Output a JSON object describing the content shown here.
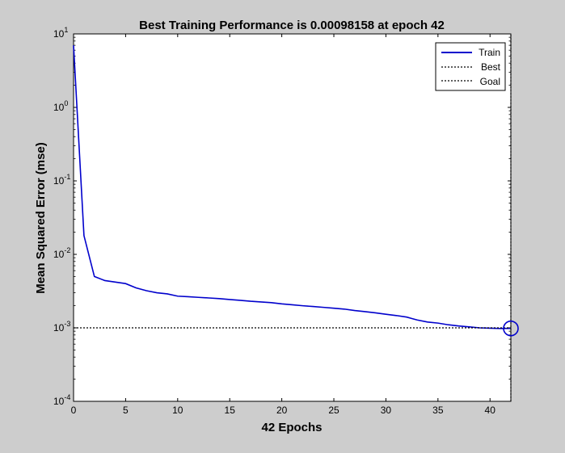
{
  "chart_data": {
    "type": "line",
    "title": "Best Training Performance is 0.00098158 at epoch 42",
    "xlabel": "42 Epochs",
    "ylabel": "Mean Squared Error  (mse)",
    "xlim": [
      0,
      42
    ],
    "ylim": [
      0.0001,
      10
    ],
    "yscale": "log",
    "grid": false,
    "legend_position": "top-right",
    "x_ticks": [
      "0",
      "5",
      "10",
      "15",
      "20",
      "25",
      "30",
      "35",
      "40"
    ],
    "y_ticks": [
      {
        "base": "10",
        "exp": "-4",
        "value": 0.0001
      },
      {
        "base": "10",
        "exp": "-3",
        "value": 0.001
      },
      {
        "base": "10",
        "exp": "-2",
        "value": 0.01
      },
      {
        "base": "10",
        "exp": "-1",
        "value": 0.1
      },
      {
        "base": "10",
        "exp": "0",
        "value": 1
      },
      {
        "base": "10",
        "exp": "1",
        "value": 10
      }
    ],
    "series": [
      {
        "name": "Train",
        "color": "#0000cc",
        "style": "solid",
        "x": [
          0,
          1,
          2,
          3,
          4,
          5,
          6,
          7,
          8,
          9,
          10,
          11,
          12,
          13,
          14,
          15,
          16,
          17,
          18,
          19,
          20,
          21,
          22,
          23,
          24,
          25,
          26,
          27,
          28,
          29,
          30,
          31,
          32,
          33,
          34,
          35,
          36,
          37,
          38,
          39,
          40,
          41,
          42
        ],
        "y": [
          7,
          0.018,
          0.005,
          0.0044,
          0.0042,
          0.004,
          0.0035,
          0.0032,
          0.003,
          0.0029,
          0.0027,
          0.00265,
          0.0026,
          0.00255,
          0.0025,
          0.00243,
          0.00237,
          0.0023,
          0.00225,
          0.0022,
          0.00212,
          0.00206,
          0.002,
          0.00195,
          0.0019,
          0.00185,
          0.0018,
          0.00172,
          0.00166,
          0.0016,
          0.00153,
          0.00147,
          0.0014,
          0.00128,
          0.0012,
          0.00116,
          0.0011,
          0.00106,
          0.00103,
          0.001,
          0.00099,
          0.00098,
          0.00098158
        ]
      },
      {
        "name": "Best",
        "color": "#000000",
        "style": "dotted",
        "x": [
          42,
          42
        ],
        "y": [
          0.0001,
          10
        ]
      },
      {
        "name": "Goal",
        "color": "#000000",
        "style": "dotted",
        "x": [
          0,
          42
        ],
        "y": [
          0.001,
          0.001
        ]
      }
    ],
    "best_marker": {
      "x": 42,
      "y": 0.00098158,
      "color": "#0000cc"
    }
  }
}
